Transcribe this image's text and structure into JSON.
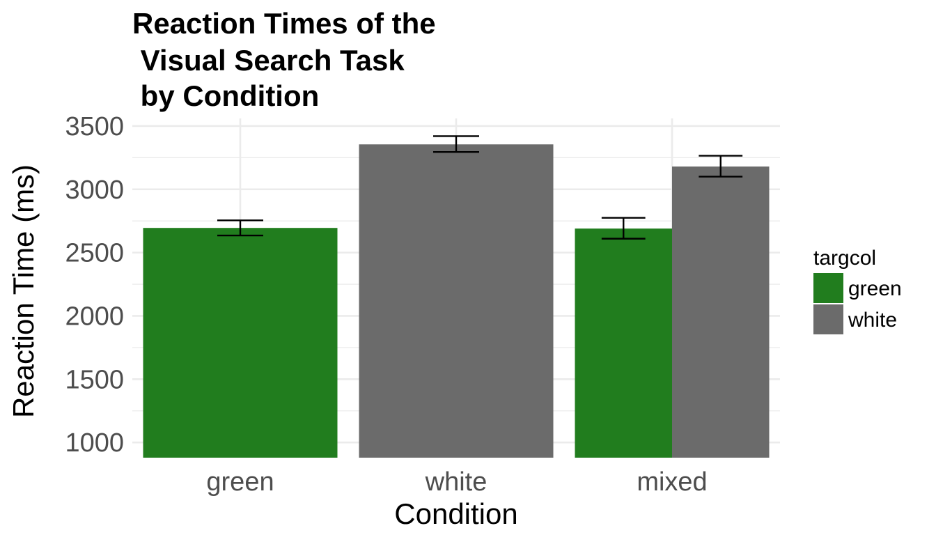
{
  "chart_data": {
    "type": "bar",
    "title_lines": [
      "Reaction Times of the",
      " Visual Search Task",
      " by Condition"
    ],
    "xlabel": "Condition",
    "ylabel": "Reaction Time (ms)",
    "categories": [
      "green",
      "white",
      "mixed"
    ],
    "yticks": [
      "1000",
      "1500",
      "2000",
      "2500",
      "3000",
      "3500"
    ],
    "ylim": [
      880,
      3560
    ],
    "grid": true,
    "legend_placement": "right",
    "legend_title": "targcol",
    "series": [
      {
        "name": "green",
        "color": "#217d1e",
        "values": [
          2695,
          null,
          2690
        ],
        "error_low": [
          2635,
          null,
          2610
        ],
        "error_high": [
          2755,
          null,
          2775
        ]
      },
      {
        "name": "white",
        "color": "#6b6b6b",
        "values": [
          null,
          3355,
          3180
        ],
        "error_low": [
          null,
          3295,
          3100
        ],
        "error_high": [
          null,
          3420,
          3265
        ]
      }
    ]
  }
}
